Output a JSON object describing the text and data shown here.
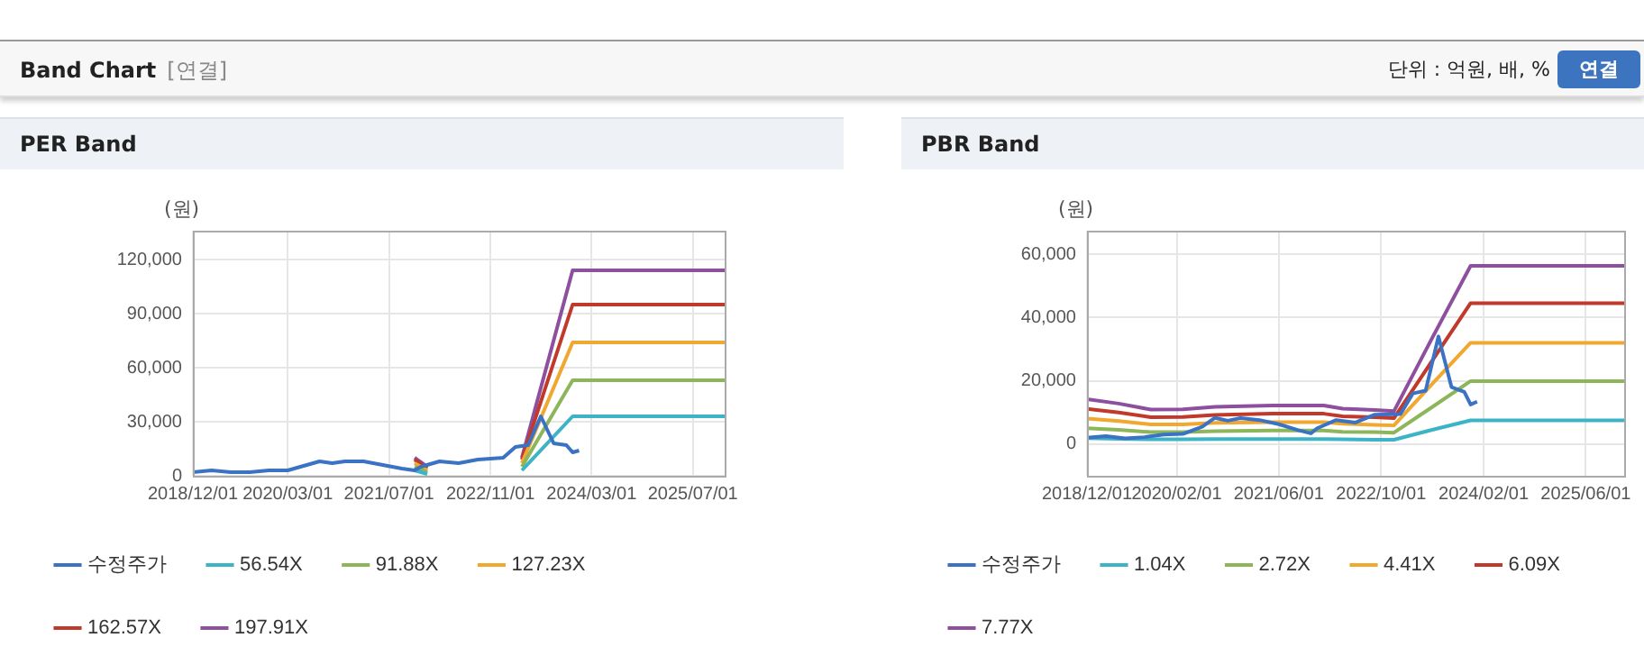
{
  "chart_data": [
    {
      "type": "line",
      "title": "PER Band",
      "ylabel": "(원)",
      "annotations": [
        "Band Chart",
        "[연결]",
        "단위 : 억원, 배, %",
        "연결"
      ],
      "xlim": [
        "2018-12-01",
        "2025-12-01"
      ],
      "xticks": [
        {
          "value": "2018-12-01",
          "label": "2018/12/01"
        },
        {
          "value": "2020-03-01",
          "label": "2020/03/01"
        },
        {
          "value": "2021-07-01",
          "label": "2021/07/01"
        },
        {
          "value": "2022-11-01",
          "label": "2022/11/01"
        },
        {
          "value": "2024-03-01",
          "label": "2024/03/01"
        },
        {
          "value": "2025-07-01",
          "label": "2025/07/01"
        }
      ],
      "ylim": [
        0,
        136000
      ],
      "yticks": [
        0,
        {
          "value": 30000,
          "label": "30,000"
        },
        {
          "value": 60000,
          "label": "60,000"
        },
        {
          "value": 90000,
          "label": "90,000"
        },
        {
          "value": 120000,
          "label": "120,000"
        }
      ],
      "grid": true,
      "legend": "bottom",
      "marker": "none",
      "line_style": "solid",
      "series": [
        {
          "name": "수정주가",
          "color": "#3a72c4",
          "x": [
            "2018-12",
            "2019-03",
            "2019-06",
            "2019-09",
            "2019-12",
            "2020-03",
            "2020-06",
            "2020-08",
            "2020-10",
            "2020-12",
            "2021-03",
            "2021-06",
            "2021-09",
            "2021-11",
            "2021-12",
            "2022-03",
            "2022-06",
            "2022-09",
            "2023-01",
            "2023-03",
            "2023-05",
            "2023-07",
            "2023-09",
            "2023-11",
            "2023-12",
            "2024-01"
          ],
          "values": [
            2000,
            3000,
            2000,
            2000,
            3000,
            3000,
            6000,
            8000,
            7000,
            8000,
            8000,
            6000,
            4000,
            3000,
            5000,
            8000,
            7000,
            9000,
            10000,
            16000,
            17000,
            33000,
            18000,
            17000,
            13000,
            14000
          ]
        },
        {
          "name": "56.54X",
          "color": "#3cb4c6",
          "x": [
            "2021-11",
            "2022-01",
            "2022-03",
            "2023-04",
            "2023-12",
            "2025-12"
          ],
          "values": [
            3000,
            1000,
            null,
            3000,
            33000,
            33000
          ]
        },
        {
          "name": "91.88X",
          "color": "#8db55a",
          "x": [
            "2021-11",
            "2022-01",
            "2022-03",
            "2023-04",
            "2023-12",
            "2025-12"
          ],
          "values": [
            5000,
            2000,
            null,
            5000,
            53000,
            53000
          ]
        },
        {
          "name": "127.23X",
          "color": "#f0a830",
          "x": [
            "2021-11",
            "2022-01",
            "2022-03",
            "2023-04",
            "2023-12",
            "2025-12"
          ],
          "values": [
            7000,
            3000,
            null,
            7000,
            74000,
            74000
          ]
        },
        {
          "name": "162.57X",
          "color": "#c0392b",
          "x": [
            "2021-11",
            "2022-01",
            "2022-03",
            "2023-04",
            "2023-12",
            "2025-12"
          ],
          "values": [
            9000,
            4000,
            null,
            9000,
            95000,
            95000
          ]
        },
        {
          "name": "197.91X",
          "color": "#8e4f9e",
          "x": [
            "2021-11",
            "2022-01",
            "2022-03",
            "2023-04",
            "2023-12",
            "2025-12"
          ],
          "values": [
            10000,
            5000,
            null,
            10000,
            114000,
            114000
          ]
        }
      ]
    },
    {
      "type": "line",
      "title": "PBR Band",
      "ylabel": "(원)",
      "xlim": [
        "2018-12-01",
        "2025-12-01"
      ],
      "xticks": [
        {
          "value": "2018-12-01",
          "label": "2018/12/01"
        },
        {
          "value": "2020-02-01",
          "label": "2020/02/01"
        },
        {
          "value": "2021-06-01",
          "label": "2021/06/01"
        },
        {
          "value": "2022-10-01",
          "label": "2022/10/01"
        },
        {
          "value": "2024-02-01",
          "label": "2024/02/01"
        },
        {
          "value": "2025-06-01",
          "label": "2025/06/01"
        }
      ],
      "ylim": [
        -10000,
        67400
      ],
      "yticks": [
        0,
        {
          "value": 20000,
          "label": "20,000"
        },
        {
          "value": 40000,
          "label": "40,000"
        },
        {
          "value": 60000,
          "label": "60,000"
        }
      ],
      "grid": true,
      "legend": "bottom",
      "marker": "none",
      "line_style": "solid",
      "series": [
        {
          "name": "수정주가",
          "color": "#3a72c4",
          "x": [
            "2018-12",
            "2019-03",
            "2019-06",
            "2019-09",
            "2019-12",
            "2020-03",
            "2020-06",
            "2020-08",
            "2020-10",
            "2020-12",
            "2021-03",
            "2021-06",
            "2021-09",
            "2021-11",
            "2021-12",
            "2022-03",
            "2022-06",
            "2022-09",
            "2023-01",
            "2023-03",
            "2023-05",
            "2023-07",
            "2023-09",
            "2023-11",
            "2023-12",
            "2024-01"
          ],
          "values": [
            2000,
            2500,
            1800,
            2200,
            3000,
            3200,
            5500,
            8300,
            7400,
            8200,
            7600,
            6300,
            4400,
            3400,
            5000,
            7600,
            6800,
            9300,
            9500,
            16000,
            16900,
            34000,
            18000,
            16500,
            12500,
            13400
          ]
        },
        {
          "name": "1.04X",
          "color": "#3cb4c6",
          "x": [
            "2018-12",
            "2019-05",
            "2019-10",
            "2020-03",
            "2020-08",
            "2021-05",
            "2022-01",
            "2022-04",
            "2022-09",
            "2022-12",
            "2023-06",
            "2023-12",
            "2025-12"
          ],
          "values": [
            1900,
            1700,
            1500,
            1500,
            1600,
            1600,
            1600,
            1500,
            1400,
            1400,
            4500,
            7500,
            7500
          ]
        },
        {
          "name": "2.72X",
          "color": "#8db55a",
          "x": [
            "2018-12",
            "2019-05",
            "2019-10",
            "2020-03",
            "2020-08",
            "2021-05",
            "2022-01",
            "2022-04",
            "2022-09",
            "2022-12",
            "2023-06",
            "2023-12",
            "2025-12"
          ],
          "values": [
            5000,
            4500,
            3800,
            3800,
            4100,
            4300,
            4300,
            3900,
            3800,
            3600,
            11700,
            19900,
            19900
          ]
        },
        {
          "name": "4.41X",
          "color": "#f0a830",
          "x": [
            "2018-12",
            "2019-05",
            "2019-10",
            "2020-03",
            "2020-08",
            "2021-05",
            "2022-01",
            "2022-04",
            "2022-09",
            "2022-12",
            "2023-06",
            "2023-12",
            "2025-12"
          ],
          "values": [
            8100,
            7300,
            6200,
            6200,
            6700,
            6900,
            6900,
            6400,
            6100,
            5900,
            19000,
            32000,
            32000
          ]
        },
        {
          "name": "6.09X",
          "color": "#c0392b",
          "x": [
            "2018-12",
            "2019-05",
            "2019-10",
            "2020-03",
            "2020-08",
            "2021-05",
            "2022-01",
            "2022-04",
            "2022-09",
            "2022-12",
            "2023-06",
            "2023-12",
            "2025-12"
          ],
          "values": [
            11100,
            10000,
            8500,
            8600,
            9200,
            9600,
            9600,
            8800,
            8500,
            8200,
            26300,
            44500,
            44500
          ]
        },
        {
          "name": "7.77X",
          "color": "#8e4f9e",
          "x": [
            "2018-12",
            "2019-05",
            "2019-10",
            "2020-03",
            "2020-08",
            "2021-05",
            "2022-01",
            "2022-04",
            "2022-09",
            "2022-12",
            "2023-06",
            "2023-12",
            "2025-12"
          ],
          "values": [
            14200,
            12800,
            10900,
            11000,
            11800,
            12200,
            12200,
            11200,
            10800,
            10400,
            33500,
            56300,
            56300
          ]
        }
      ]
    }
  ]
}
